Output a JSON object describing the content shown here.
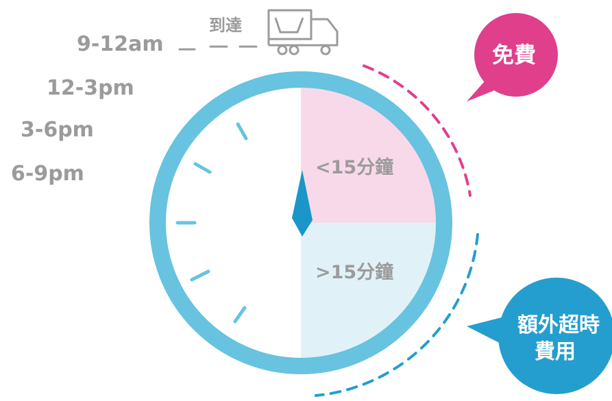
{
  "time_slots": [
    "9-12am",
    "12-3pm",
    "3-6pm",
    "6-9pm"
  ],
  "arrival_label": "到達",
  "segments": {
    "free_window": "<15分鐘",
    "overtime_window": ">15分鐘"
  },
  "bubbles": {
    "free": "免費",
    "overtime_line1": "額外超時",
    "overtime_line2": "費用"
  },
  "colors": {
    "clock_ring": "#67c3df",
    "free_fill": "#f8d9e9",
    "overtime_fill": "#e0f2f8",
    "hand": "#1c95c8",
    "free_bubble": "#e03f8c",
    "overtime_bubble": "#249ecf",
    "text_grey": "#9b9b9b"
  },
  "icons": [
    "truck-icon"
  ]
}
